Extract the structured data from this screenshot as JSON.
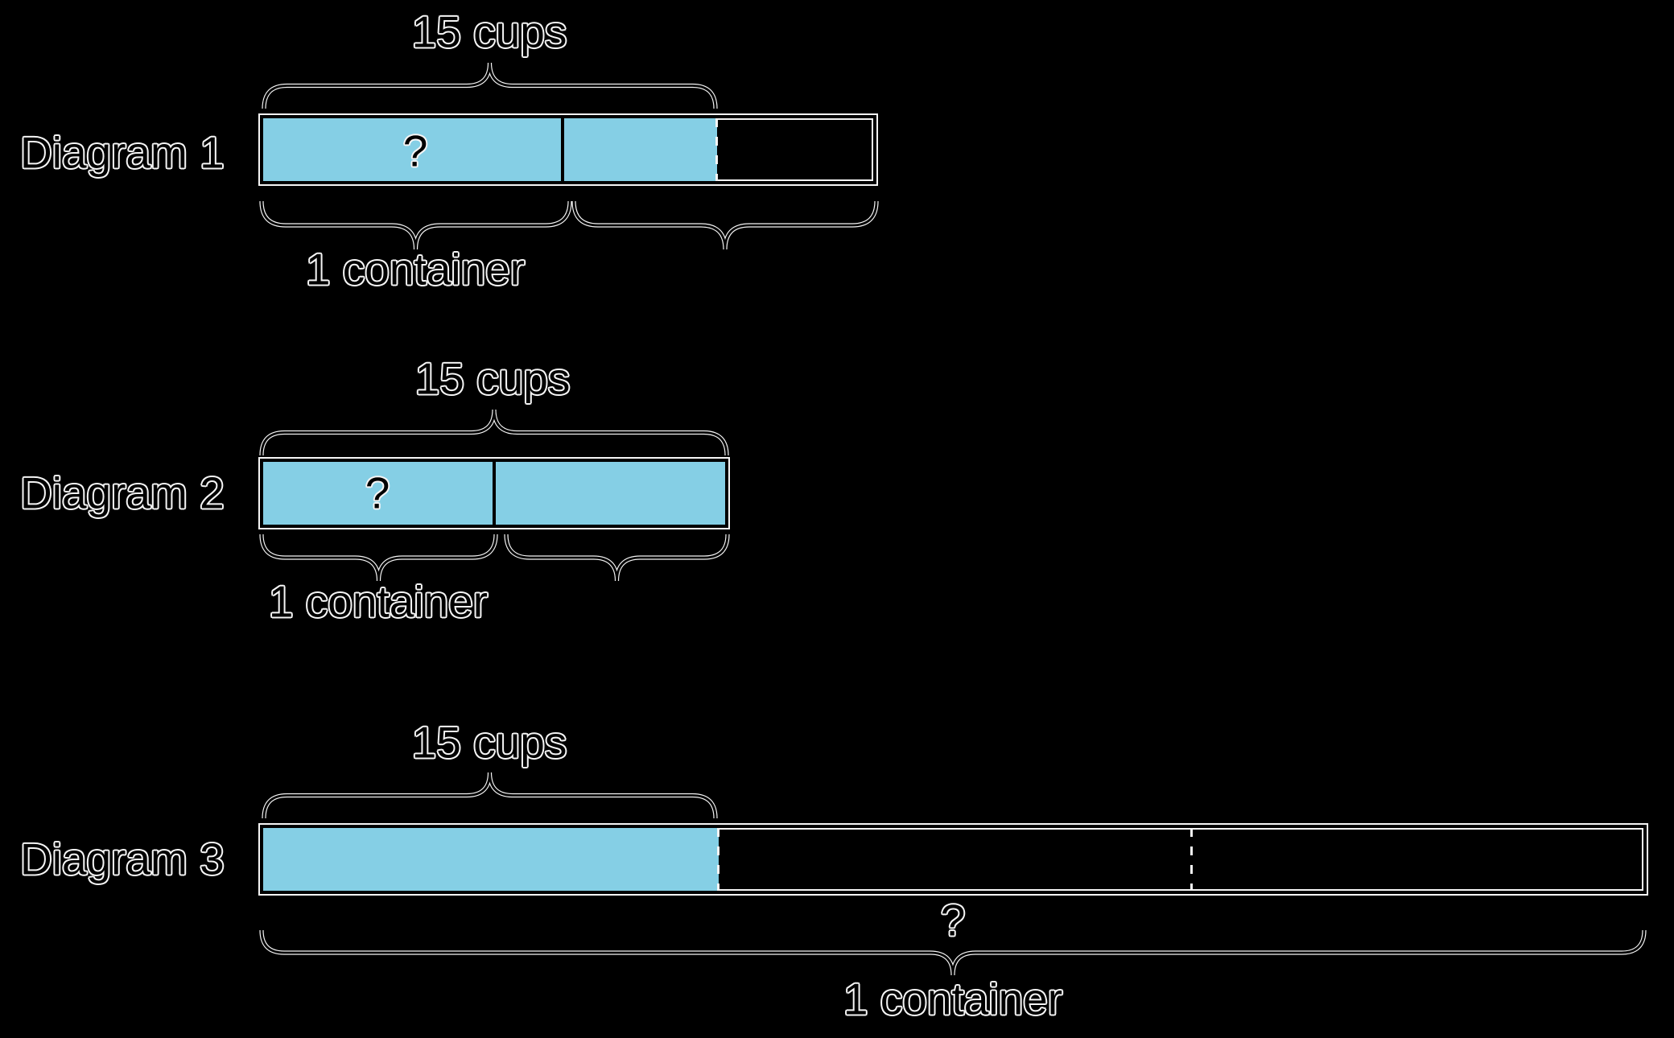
{
  "palette": {
    "background": "#000000",
    "tape_fill": "#85CFE5",
    "stroke": "#000000",
    "halo": "#F5F5F5"
  },
  "diagrams": [
    {
      "label": "Diagram 1",
      "amount_label": "15 cups",
      "unknown": "?",
      "unit_label": "1 container"
    },
    {
      "label": "Diagram 2",
      "amount_label": "15 cups",
      "unknown": "?",
      "unit_label": "1 container"
    },
    {
      "label": "Diagram 3",
      "amount_label": "15 cups",
      "unknown": "?",
      "unit_label": "1 container"
    }
  ]
}
